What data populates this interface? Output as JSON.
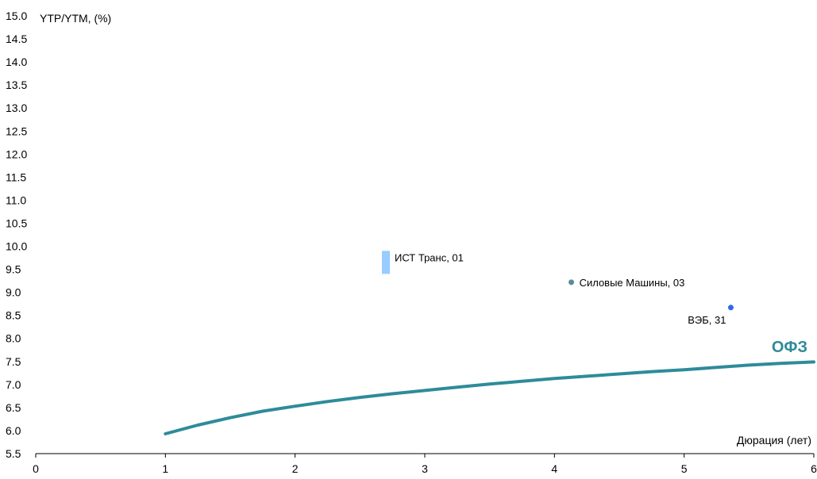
{
  "chart_data": {
    "type": "scatter",
    "ylabel": "YTP/YTM, (%)",
    "xlabel": "Дюрация (лет)",
    "xlim": [
      0,
      6
    ],
    "ylim": [
      5.5,
      15.0
    ],
    "xticks": [
      "0",
      "1",
      "2",
      "3",
      "4",
      "5",
      "6"
    ],
    "yticks": [
      "15.0",
      "14.5",
      "14.0",
      "13.5",
      "13.0",
      "12.5",
      "12.0",
      "11.5",
      "11.0",
      "10.5",
      "10.0",
      "9.5",
      "9.0",
      "8.5",
      "8.0",
      "7.5",
      "7.0",
      "6.5",
      "6.0",
      "5.5"
    ],
    "grid": false,
    "curve": {
      "name": "ОФЗ",
      "color": "#2e8b9a",
      "x": [
        1.0,
        1.25,
        1.5,
        1.75,
        2.0,
        2.25,
        2.5,
        2.75,
        3.0,
        3.25,
        3.5,
        3.75,
        4.0,
        4.25,
        4.5,
        4.75,
        5.0,
        5.25,
        5.5,
        5.75,
        6.0
      ],
      "y": [
        5.93,
        6.12,
        6.28,
        6.42,
        6.53,
        6.63,
        6.72,
        6.8,
        6.87,
        6.94,
        7.01,
        7.07,
        7.13,
        7.18,
        7.23,
        7.28,
        7.32,
        7.37,
        7.42,
        7.46,
        7.49
      ]
    },
    "points": [
      {
        "label": "ИСТ Транс, 01",
        "x": 2.7,
        "y_low": 9.4,
        "y_high": 9.9,
        "marker": "bar",
        "color": "#99ccff"
      },
      {
        "label": "Силовые Машины, 03",
        "x": 4.13,
        "y": 9.22,
        "marker": "dot",
        "color": "#5b8c99"
      },
      {
        "label": "ВЭБ, 31",
        "x": 5.36,
        "y": 8.67,
        "marker": "dot",
        "color": "#3366ee"
      }
    ]
  }
}
